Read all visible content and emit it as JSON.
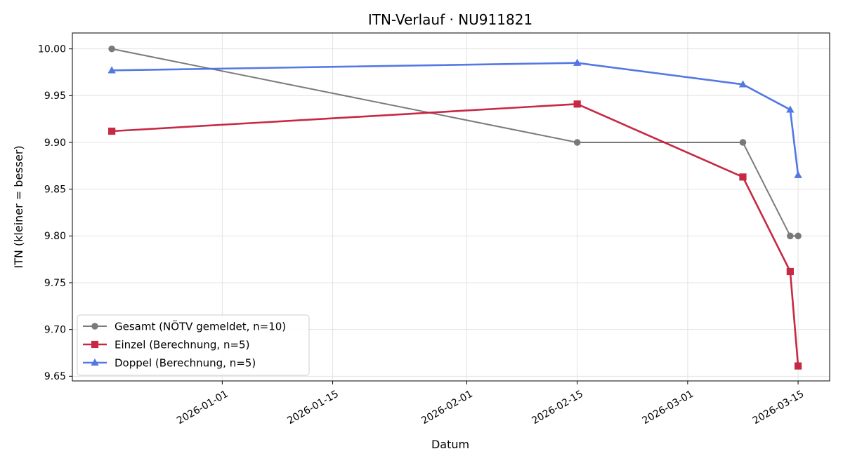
{
  "chart_data": {
    "type": "line",
    "title": "ITN-Verlauf · NU911821",
    "xlabel": "Datum",
    "ylabel": "ITN  (kleiner = besser)",
    "xlim": [
      "2025-12-13",
      "2026-03-19"
    ],
    "ylim": [
      9.645,
      10.017
    ],
    "grid": true,
    "legend_position": "lower-left",
    "x_ticks": [
      "2026-01-01",
      "2026-01-15",
      "2026-02-01",
      "2026-02-15",
      "2026-03-01",
      "2026-03-15"
    ],
    "y_ticks": [
      "9.65",
      "9.70",
      "9.75",
      "9.80",
      "9.85",
      "9.90",
      "9.95",
      "10.00"
    ],
    "series": [
      {
        "name": "Gesamt (NÖTV gemeldet, n=10)",
        "color": "#444444",
        "marker": "circle",
        "opacity": 0.7,
        "points": [
          {
            "x": "2025-12-18",
            "y": 10.0
          },
          {
            "x": "2026-02-15",
            "y": 9.9
          },
          {
            "x": "2026-03-08",
            "y": 9.9
          },
          {
            "x": "2026-03-14",
            "y": 9.8
          },
          {
            "x": "2026-03-15",
            "y": 9.8
          }
        ]
      },
      {
        "name": "Einzel (Berechnung, n=5)",
        "color": "#c41e3a",
        "marker": "square",
        "opacity": 0.95,
        "points": [
          {
            "x": "2025-12-18",
            "y": 9.912
          },
          {
            "x": "2026-02-15",
            "y": 9.941
          },
          {
            "x": "2026-03-08",
            "y": 9.863
          },
          {
            "x": "2026-03-14",
            "y": 9.762
          },
          {
            "x": "2026-03-15",
            "y": 9.661
          }
        ]
      },
      {
        "name": "Doppel (Berechnung, n=5)",
        "color": "#4169e1",
        "marker": "triangle",
        "opacity": 0.9,
        "points": [
          {
            "x": "2025-12-18",
            "y": 9.977
          },
          {
            "x": "2026-02-15",
            "y": 9.985
          },
          {
            "x": "2026-03-08",
            "y": 9.962
          },
          {
            "x": "2026-03-14",
            "y": 9.935
          },
          {
            "x": "2026-03-15",
            "y": 9.865
          }
        ]
      }
    ]
  }
}
